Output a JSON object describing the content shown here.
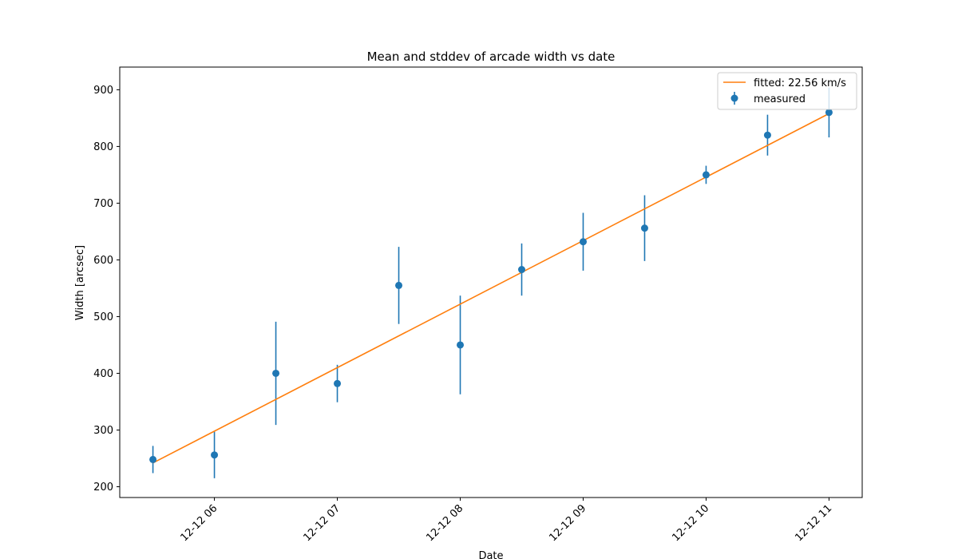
{
  "chart_data": {
    "type": "scatter",
    "title": "Mean and stddev of arcade width vs date",
    "xlabel": "Date",
    "ylabel": "Width [arcsec]",
    "x_tick_labels": [
      "12-12 06",
      "12-12 07",
      "12-12 08",
      "12-12 09",
      "12-12 10",
      "12-12 11"
    ],
    "y_tick_labels": [
      "200",
      "300",
      "400",
      "500",
      "600",
      "700",
      "800",
      "900"
    ],
    "xlim_hours": [
      5.23,
      11.27
    ],
    "ylim": [
      181,
      940
    ],
    "grid": false,
    "legend_position": "upper right",
    "series": [
      {
        "name": "fitted: 22.56 km/s",
        "kind": "line",
        "color": "#ff7f0e",
        "x": [
          "12-12 05:30",
          "12-12 11:00"
        ],
        "y": [
          242,
          858
        ]
      },
      {
        "name": "measured",
        "kind": "errorbar",
        "color": "#1f77b4",
        "x": [
          "12-12 05:30",
          "12-12 06:00",
          "12-12 06:30",
          "12-12 07:00",
          "12-12 07:30",
          "12-12 08:00",
          "12-12 08:30",
          "12-12 09:00",
          "12-12 09:30",
          "12-12 10:00",
          "12-12 10:30",
          "12-12 11:00"
        ],
        "y": [
          248,
          256,
          400,
          382,
          555,
          450,
          583,
          632,
          656,
          750,
          820,
          860
        ],
        "yerr": [
          24,
          41,
          91,
          33,
          68,
          87,
          46,
          51,
          58,
          16,
          36,
          44
        ]
      }
    ]
  }
}
